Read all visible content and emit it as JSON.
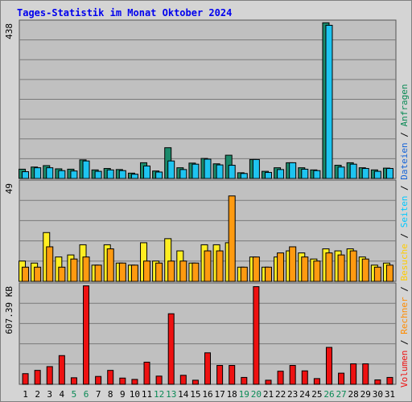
{
  "chart_data": {
    "type": "bar",
    "title": "Tages-Statistik im Monat Oktober 2024",
    "categories": [
      "1",
      "2",
      "3",
      "4",
      "5",
      "6",
      "7",
      "8",
      "9",
      "10",
      "11",
      "12",
      "13",
      "14",
      "15",
      "16",
      "17",
      "18",
      "19",
      "20",
      "21",
      "22",
      "23",
      "24",
      "25",
      "26",
      "27",
      "28",
      "29",
      "30",
      "31"
    ],
    "weekend_days": [
      "5",
      "6",
      "12",
      "13",
      "19",
      "20",
      "26",
      "27"
    ],
    "colors": {
      "anfragen": "#1b8a6b",
      "dateien": "#1ec4f0",
      "seiten": "#1ec4f0",
      "besuche": "#ffee22",
      "rechner": "#ff9a10",
      "volumen": "#ee1111",
      "weekend_label": "#0a8a55",
      "weekday_label": "#000000",
      "plot_bg": "#c0c0c0",
      "grid": "#7a7a7a"
    },
    "panels": [
      {
        "name": "hits",
        "ymax_label": "438",
        "ylim": [
          0,
          438
        ],
        "series": [
          {
            "key": "anfragen",
            "values": [
              26,
              32,
              36,
              27,
              26,
              52,
              24,
              28,
              25,
              15,
              44,
              21,
              86,
              30,
              43,
              56,
              41,
              65,
              16,
              53,
              20,
              30,
              44,
              30,
              24,
              435,
              37,
              44,
              30,
              24,
              29
            ]
          },
          {
            "key": "dateien",
            "values": [
              19,
              30,
              30,
              22,
              21,
              49,
              20,
              24,
              22,
              12,
              35,
              18,
              49,
              25,
              40,
              54,
              38,
              37,
              14,
              53,
              17,
              25,
              44,
              26,
              22,
              428,
              32,
              40,
              28,
              20,
              28
            ]
          }
        ]
      },
      {
        "name": "visits",
        "ymax_label": "49",
        "ylim": [
          0,
          49
        ],
        "series": [
          {
            "key": "besuche",
            "values": [
              10,
              9,
              24,
              12,
              13,
              18,
              8,
              18,
              9,
              8,
              19,
              10,
              21,
              15,
              9,
              18,
              18,
              19,
              7,
              12,
              7,
              12,
              15,
              14,
              11,
              16,
              15,
              16,
              12,
              8,
              9
            ]
          },
          {
            "key": "rechner",
            "values": [
              7,
              7,
              17,
              7,
              11,
              12,
              8,
              16,
              9,
              8,
              10,
              9,
              10,
              10,
              9,
              15,
              15,
              42,
              7,
              12,
              7,
              14,
              17,
              12,
              10,
              14,
              13,
              15,
              11,
              7,
              8
            ]
          }
        ]
      },
      {
        "name": "volume",
        "ymax_label": "607.39 KB",
        "ylim": [
          0,
          607.39
        ],
        "series": [
          {
            "key": "volumen",
            "values": [
              65,
              85,
              108,
              175,
              40,
              600,
              48,
              85,
              38,
              30,
              135,
              50,
              430,
              55,
              25,
              192,
              115,
              115,
              42,
              595,
              25,
              80,
              115,
              82,
              35,
              225,
              68,
              125,
              125,
              27,
              42
            ]
          }
        ]
      }
    ],
    "legend_left": [
      {
        "label": "Volumen",
        "key": "volumen"
      },
      {
        "label": "/",
        "key": "sep"
      },
      {
        "label": "Rechner",
        "key": "rechner"
      },
      {
        "label": "/",
        "key": "sep"
      },
      {
        "label": "Besuche",
        "key": "besuche"
      },
      {
        "label": "/",
        "key": "sep"
      },
      {
        "label": "Seiten",
        "key": "seiten"
      },
      {
        "label": "/",
        "key": "sep"
      },
      {
        "label": "Dateien",
        "key": "dateien_label"
      },
      {
        "label": "/",
        "key": "sep"
      },
      {
        "label": "Anfragen",
        "key": "anfragen"
      }
    ],
    "legend_colors": {
      "volumen": "#ee1111",
      "rechner": "#ff8c00",
      "besuche": "#ffcc00",
      "seiten": "#00c8ff",
      "dateien_label": "#1463d8",
      "anfragen": "#0a8a55",
      "sep": "#000000"
    }
  }
}
